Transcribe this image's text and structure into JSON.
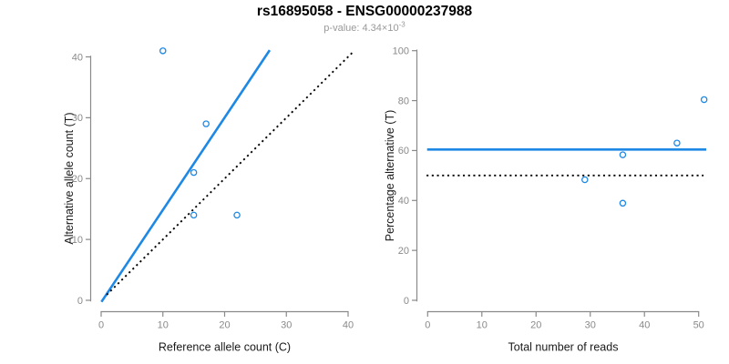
{
  "title": "rs16895058 - ENSG00000237988",
  "subtitle": {
    "prefix": "p-value: 4.34×10",
    "exponent": "-3"
  },
  "colors": {
    "accent_blue": "#1E88E5",
    "dotted_black": "#000000",
    "axis_gray": "#8a8a8a",
    "tick_text_gray": "#8a8a8a",
    "axis_label_dark": "#1a1a1a",
    "subtitle_gray": "#999999"
  },
  "chart_data": [
    {
      "type": "scatter",
      "xlabel": "Reference allele count (C)",
      "ylabel": "Alternative allele count (T)",
      "xlim": [
        0,
        40
      ],
      "ylim": [
        0,
        40
      ],
      "x_ticks": [
        0,
        10,
        20,
        30,
        40
      ],
      "y_ticks": [
        0,
        10,
        20,
        30,
        40
      ],
      "grid": false,
      "points": [
        [
          10,
          41
        ],
        [
          17,
          29
        ],
        [
          15,
          21
        ],
        [
          15,
          14
        ],
        [
          22,
          14
        ]
      ],
      "lines": [
        {
          "name": "fit-line",
          "style": "solid",
          "from": [
            0.05,
            -0.25
          ],
          "to": [
            27.3,
            41.1
          ]
        },
        {
          "name": "identity-line",
          "style": "dotted",
          "from": [
            0.9,
            0.9
          ],
          "to": [
            40.8,
            40.8
          ]
        }
      ]
    },
    {
      "type": "scatter",
      "xlabel": "Total number of reads",
      "ylabel": "Percentage alternative (T)",
      "xlim": [
        0,
        50
      ],
      "ylim": [
        0,
        100
      ],
      "x_ticks": [
        0,
        10,
        20,
        30,
        40,
        50
      ],
      "y_ticks": [
        0,
        20,
        40,
        60,
        80,
        100
      ],
      "grid": false,
      "points": [
        [
          29,
          48.3
        ],
        [
          36,
          58.3
        ],
        [
          36,
          38.9
        ],
        [
          46,
          63.0
        ],
        [
          51,
          80.4
        ]
      ],
      "lines": [
        {
          "name": "mean-line",
          "style": "solid",
          "from": [
            -0.1,
            60.4
          ],
          "to": [
            51.4,
            60.4
          ]
        },
        {
          "name": "reference-line",
          "style": "dotted",
          "from": [
            -0.2,
            50
          ],
          "to": [
            50.9,
            50
          ]
        }
      ]
    }
  ]
}
